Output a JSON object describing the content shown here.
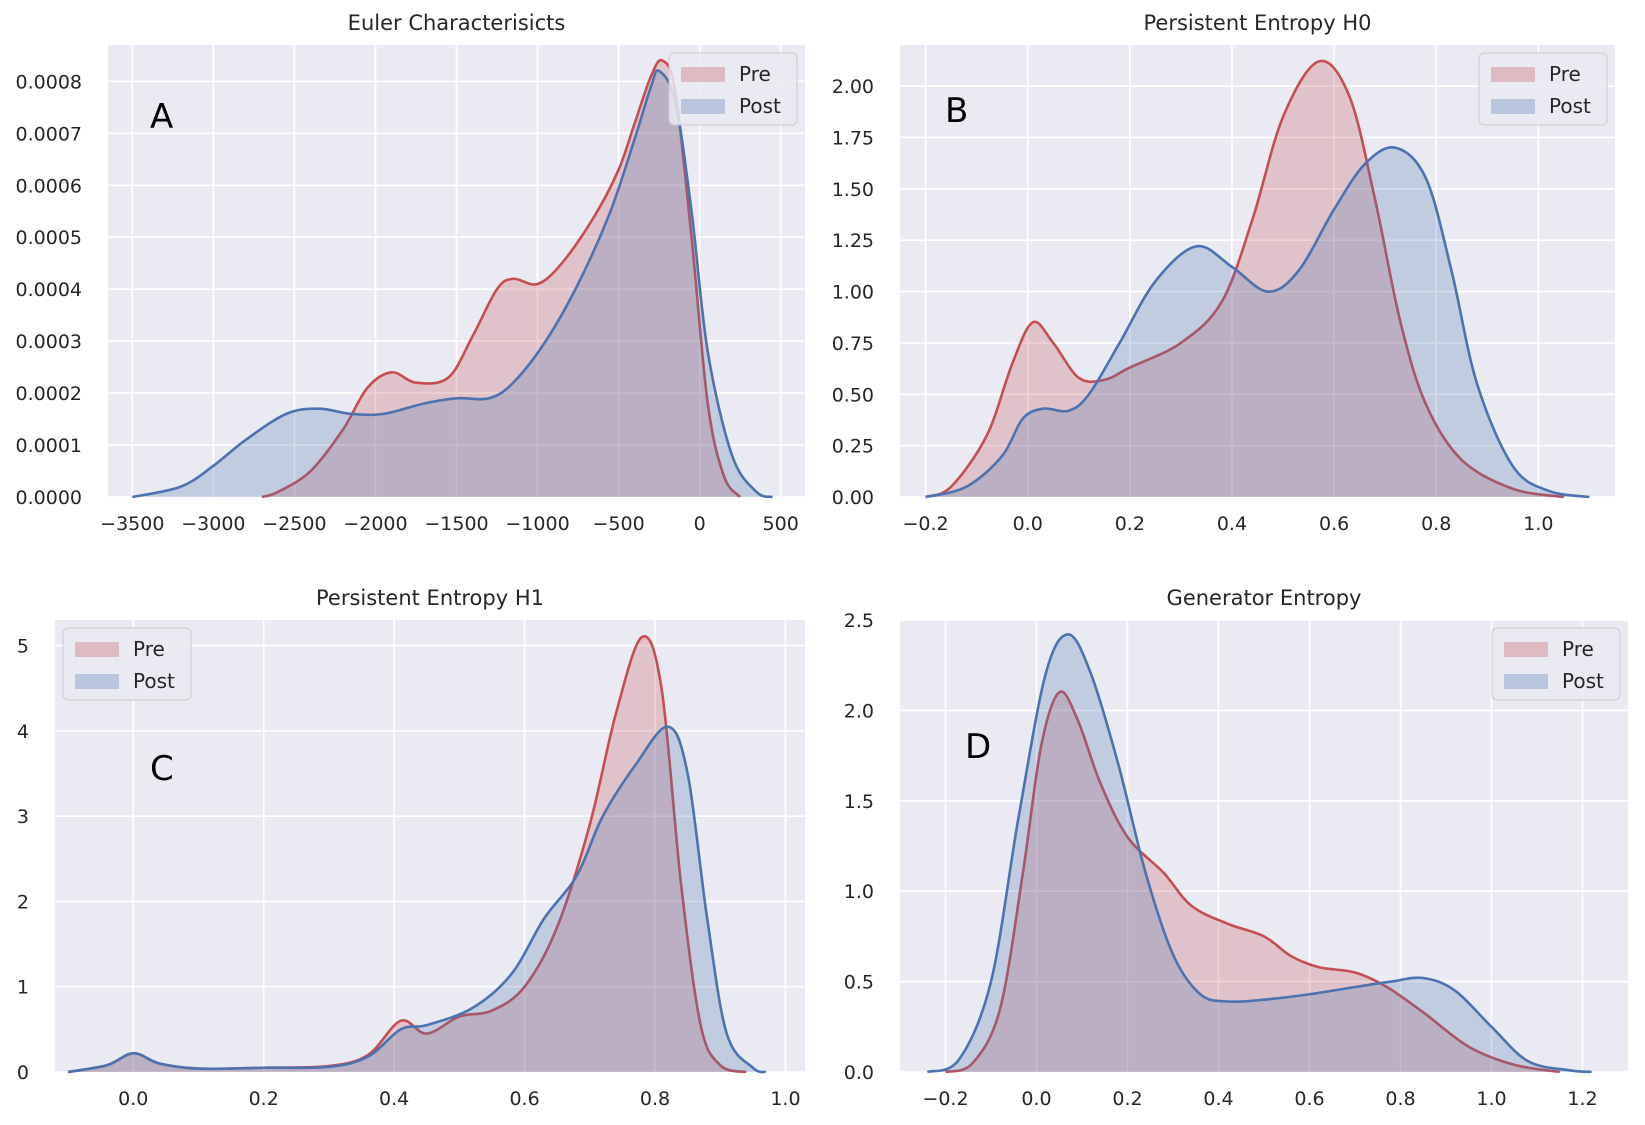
{
  "colors": {
    "pre": "#c44e52",
    "post": "#4c72b0",
    "background": "#eaeaf2"
  },
  "chart_data": [
    {
      "type": "area",
      "panel_label": "A",
      "title": "Euler Characterisicts",
      "xlim": [
        -3650,
        650
      ],
      "ylim": [
        0,
        0.00087
      ],
      "xticks": [
        -3500,
        -3000,
        -2500,
        -2000,
        -1500,
        -1000,
        -500,
        0,
        500
      ],
      "xtick_labels": [
        "−3500",
        "−3000",
        "−2500",
        "−2000",
        "−1500",
        "−1000",
        "−500",
        "0",
        "500"
      ],
      "yticks": [
        0,
        0.0001,
        0.0002,
        0.0003,
        0.0004,
        0.0005,
        0.0006,
        0.0007,
        0.0008
      ],
      "ytick_labels": [
        "0.0000",
        "0.0001",
        "0.0002",
        "0.0003",
        "0.0004",
        "0.0005",
        "0.0006",
        "0.0007",
        "0.0008"
      ],
      "legend": {
        "position": "top-right",
        "entries": [
          "Pre",
          "Post"
        ]
      },
      "series": [
        {
          "name": "Pre",
          "color": "#c44e52",
          "points": [
            [
              -2700,
              0
            ],
            [
              -2600,
              1e-05
            ],
            [
              -2400,
              5e-05
            ],
            [
              -2200,
              0.00013
            ],
            [
              -2050,
              0.00021
            ],
            [
              -1900,
              0.00024
            ],
            [
              -1750,
              0.00022
            ],
            [
              -1550,
              0.00023
            ],
            [
              -1400,
              0.00031
            ],
            [
              -1250,
              0.0004
            ],
            [
              -1150,
              0.00042
            ],
            [
              -1000,
              0.00041
            ],
            [
              -850,
              0.00045
            ],
            [
              -650,
              0.00054
            ],
            [
              -500,
              0.00063
            ],
            [
              -400,
              0.00072
            ],
            [
              -300,
              0.00081
            ],
            [
              -230,
              0.00084
            ],
            [
              -150,
              0.00078
            ],
            [
              -50,
              0.0005
            ],
            [
              50,
              0.00018
            ],
            [
              150,
              4e-05
            ],
            [
              250,
              0
            ]
          ]
        },
        {
          "name": "Post",
          "color": "#4c72b0",
          "points": [
            [
              -3500,
              0
            ],
            [
              -3200,
              2e-05
            ],
            [
              -3000,
              6e-05
            ],
            [
              -2800,
              0.00011
            ],
            [
              -2550,
              0.00016
            ],
            [
              -2350,
              0.00017
            ],
            [
              -2150,
              0.00016
            ],
            [
              -1950,
              0.00016
            ],
            [
              -1700,
              0.00018
            ],
            [
              -1500,
              0.00019
            ],
            [
              -1300,
              0.00019
            ],
            [
              -1150,
              0.00022
            ],
            [
              -950,
              0.0003
            ],
            [
              -750,
              0.00041
            ],
            [
              -550,
              0.00055
            ],
            [
              -400,
              0.00069
            ],
            [
              -300,
              0.00079
            ],
            [
              -250,
              0.00082
            ],
            [
              -150,
              0.00076
            ],
            [
              -50,
              0.00055
            ],
            [
              50,
              0.00028
            ],
            [
              200,
              8e-05
            ],
            [
              350,
              1e-05
            ],
            [
              450,
              0
            ]
          ]
        }
      ]
    },
    {
      "type": "area",
      "panel_label": "B",
      "title": "Persistent Entropy H0",
      "xlim": [
        -0.25,
        1.15
      ],
      "ylim": [
        0,
        2.2
      ],
      "xticks": [
        -0.2,
        0,
        0.2,
        0.4,
        0.6,
        0.8,
        1.0
      ],
      "xtick_labels": [
        "−0.2",
        "0.0",
        "0.2",
        "0.4",
        "0.6",
        "0.8",
        "1.0"
      ],
      "yticks": [
        0,
        0.25,
        0.5,
        0.75,
        1.0,
        1.25,
        1.5,
        1.75,
        2.0
      ],
      "ytick_labels": [
        "0.00",
        "0.25",
        "0.50",
        "0.75",
        "1.00",
        "1.25",
        "1.50",
        "1.75",
        "2.00"
      ],
      "legend": {
        "position": "top-right",
        "entries": [
          "Pre",
          "Post"
        ]
      },
      "series": [
        {
          "name": "Pre",
          "color": "#c44e52",
          "points": [
            [
              -0.2,
              0
            ],
            [
              -0.15,
              0.05
            ],
            [
              -0.08,
              0.3
            ],
            [
              -0.03,
              0.65
            ],
            [
              0.01,
              0.85
            ],
            [
              0.05,
              0.75
            ],
            [
              0.1,
              0.58
            ],
            [
              0.15,
              0.57
            ],
            [
              0.2,
              0.63
            ],
            [
              0.3,
              0.75
            ],
            [
              0.38,
              0.95
            ],
            [
              0.44,
              1.35
            ],
            [
              0.5,
              1.85
            ],
            [
              0.57,
              2.12
            ],
            [
              0.63,
              1.95
            ],
            [
              0.68,
              1.45
            ],
            [
              0.73,
              0.85
            ],
            [
              0.78,
              0.45
            ],
            [
              0.85,
              0.18
            ],
            [
              0.95,
              0.04
            ],
            [
              1.05,
              0
            ]
          ]
        },
        {
          "name": "Post",
          "color": "#4c72b0",
          "points": [
            [
              -0.2,
              0
            ],
            [
              -0.12,
              0.05
            ],
            [
              -0.05,
              0.2
            ],
            [
              -0.01,
              0.38
            ],
            [
              0.03,
              0.43
            ],
            [
              0.08,
              0.42
            ],
            [
              0.12,
              0.5
            ],
            [
              0.18,
              0.75
            ],
            [
              0.25,
              1.05
            ],
            [
              0.33,
              1.22
            ],
            [
              0.4,
              1.12
            ],
            [
              0.47,
              1.0
            ],
            [
              0.53,
              1.1
            ],
            [
              0.6,
              1.4
            ],
            [
              0.66,
              1.62
            ],
            [
              0.72,
              1.7
            ],
            [
              0.78,
              1.55
            ],
            [
              0.83,
              1.1
            ],
            [
              0.88,
              0.55
            ],
            [
              0.95,
              0.15
            ],
            [
              1.02,
              0.03
            ],
            [
              1.1,
              0
            ]
          ]
        }
      ]
    },
    {
      "type": "area",
      "panel_label": "C",
      "title": "Persistent Entropy H1",
      "xlim": [
        -0.12,
        1.03
      ],
      "ylim": [
        0,
        5.3
      ],
      "xticks": [
        0,
        0.2,
        0.4,
        0.6,
        0.8,
        1.0
      ],
      "xtick_labels": [
        "0.0",
        "0.2",
        "0.4",
        "0.6",
        "0.8",
        "1.0"
      ],
      "yticks": [
        0,
        1,
        2,
        3,
        4,
        5
      ],
      "ytick_labels": [
        "0",
        "1",
        "2",
        "3",
        "4",
        "5"
      ],
      "legend": {
        "position": "top-left",
        "entries": [
          "Pre",
          "Post"
        ]
      },
      "series": [
        {
          "name": "Pre",
          "color": "#c44e52",
          "points": [
            [
              -0.1,
              0
            ],
            [
              -0.04,
              0.08
            ],
            [
              0,
              0.22
            ],
            [
              0.04,
              0.1
            ],
            [
              0.1,
              0.04
            ],
            [
              0.2,
              0.05
            ],
            [
              0.3,
              0.07
            ],
            [
              0.36,
              0.2
            ],
            [
              0.41,
              0.6
            ],
            [
              0.45,
              0.45
            ],
            [
              0.5,
              0.65
            ],
            [
              0.55,
              0.72
            ],
            [
              0.6,
              1.0
            ],
            [
              0.65,
              1.7
            ],
            [
              0.7,
              2.9
            ],
            [
              0.74,
              4.2
            ],
            [
              0.78,
              5.1
            ],
            [
              0.81,
              4.5
            ],
            [
              0.84,
              2.2
            ],
            [
              0.87,
              0.55
            ],
            [
              0.9,
              0.08
            ],
            [
              0.94,
              0
            ]
          ]
        },
        {
          "name": "Post",
          "color": "#4c72b0",
          "points": [
            [
              -0.1,
              0
            ],
            [
              -0.04,
              0.08
            ],
            [
              0,
              0.22
            ],
            [
              0.04,
              0.1
            ],
            [
              0.1,
              0.04
            ],
            [
              0.2,
              0.05
            ],
            [
              0.3,
              0.06
            ],
            [
              0.36,
              0.18
            ],
            [
              0.41,
              0.5
            ],
            [
              0.45,
              0.55
            ],
            [
              0.52,
              0.75
            ],
            [
              0.58,
              1.15
            ],
            [
              0.63,
              1.8
            ],
            [
              0.68,
              2.3
            ],
            [
              0.72,
              3.0
            ],
            [
              0.77,
              3.6
            ],
            [
              0.82,
              4.05
            ],
            [
              0.85,
              3.5
            ],
            [
              0.88,
              1.8
            ],
            [
              0.91,
              0.45
            ],
            [
              0.95,
              0.05
            ],
            [
              0.97,
              0
            ]
          ]
        }
      ]
    },
    {
      "type": "area",
      "panel_label": "D",
      "title": "Generator Entropy",
      "xlim": [
        -0.3,
        1.3
      ],
      "ylim": [
        0,
        2.5
      ],
      "xticks": [
        -0.2,
        0,
        0.2,
        0.4,
        0.6,
        0.8,
        1.0,
        1.2
      ],
      "xtick_labels": [
        "−0.2",
        "0.0",
        "0.2",
        "0.4",
        "0.6",
        "0.8",
        "1.0",
        "1.2"
      ],
      "yticks": [
        0,
        0.5,
        1.0,
        1.5,
        2.0,
        2.5
      ],
      "ytick_labels": [
        "0.0",
        "0.5",
        "1.0",
        "1.5",
        "2.0",
        "2.5"
      ],
      "legend": {
        "position": "top-right",
        "entries": [
          "Pre",
          "Post"
        ]
      },
      "series": [
        {
          "name": "Pre",
          "color": "#c44e52",
          "points": [
            [
              -0.2,
              0
            ],
            [
              -0.14,
              0.05
            ],
            [
              -0.08,
              0.35
            ],
            [
              -0.03,
              1.1
            ],
            [
              0.01,
              1.8
            ],
            [
              0.05,
              2.1
            ],
            [
              0.09,
              1.95
            ],
            [
              0.14,
              1.6
            ],
            [
              0.2,
              1.3
            ],
            [
              0.28,
              1.1
            ],
            [
              0.34,
              0.92
            ],
            [
              0.42,
              0.82
            ],
            [
              0.5,
              0.75
            ],
            [
              0.56,
              0.64
            ],
            [
              0.62,
              0.58
            ],
            [
              0.7,
              0.55
            ],
            [
              0.77,
              0.47
            ],
            [
              0.85,
              0.33
            ],
            [
              0.95,
              0.14
            ],
            [
              1.05,
              0.04
            ],
            [
              1.15,
              0
            ]
          ]
        },
        {
          "name": "Post",
          "color": "#4c72b0",
          "points": [
            [
              -0.24,
              0
            ],
            [
              -0.17,
              0.07
            ],
            [
              -0.1,
              0.5
            ],
            [
              -0.04,
              1.4
            ],
            [
              0.02,
              2.2
            ],
            [
              0.07,
              2.42
            ],
            [
              0.12,
              2.2
            ],
            [
              0.18,
              1.7
            ],
            [
              0.24,
              1.1
            ],
            [
              0.3,
              0.65
            ],
            [
              0.36,
              0.43
            ],
            [
              0.42,
              0.39
            ],
            [
              0.5,
              0.4
            ],
            [
              0.6,
              0.43
            ],
            [
              0.7,
              0.47
            ],
            [
              0.78,
              0.5
            ],
            [
              0.85,
              0.52
            ],
            [
              0.92,
              0.45
            ],
            [
              1.0,
              0.25
            ],
            [
              1.08,
              0.06
            ],
            [
              1.17,
              0.01
            ],
            [
              1.22,
              0
            ]
          ]
        }
      ]
    }
  ]
}
